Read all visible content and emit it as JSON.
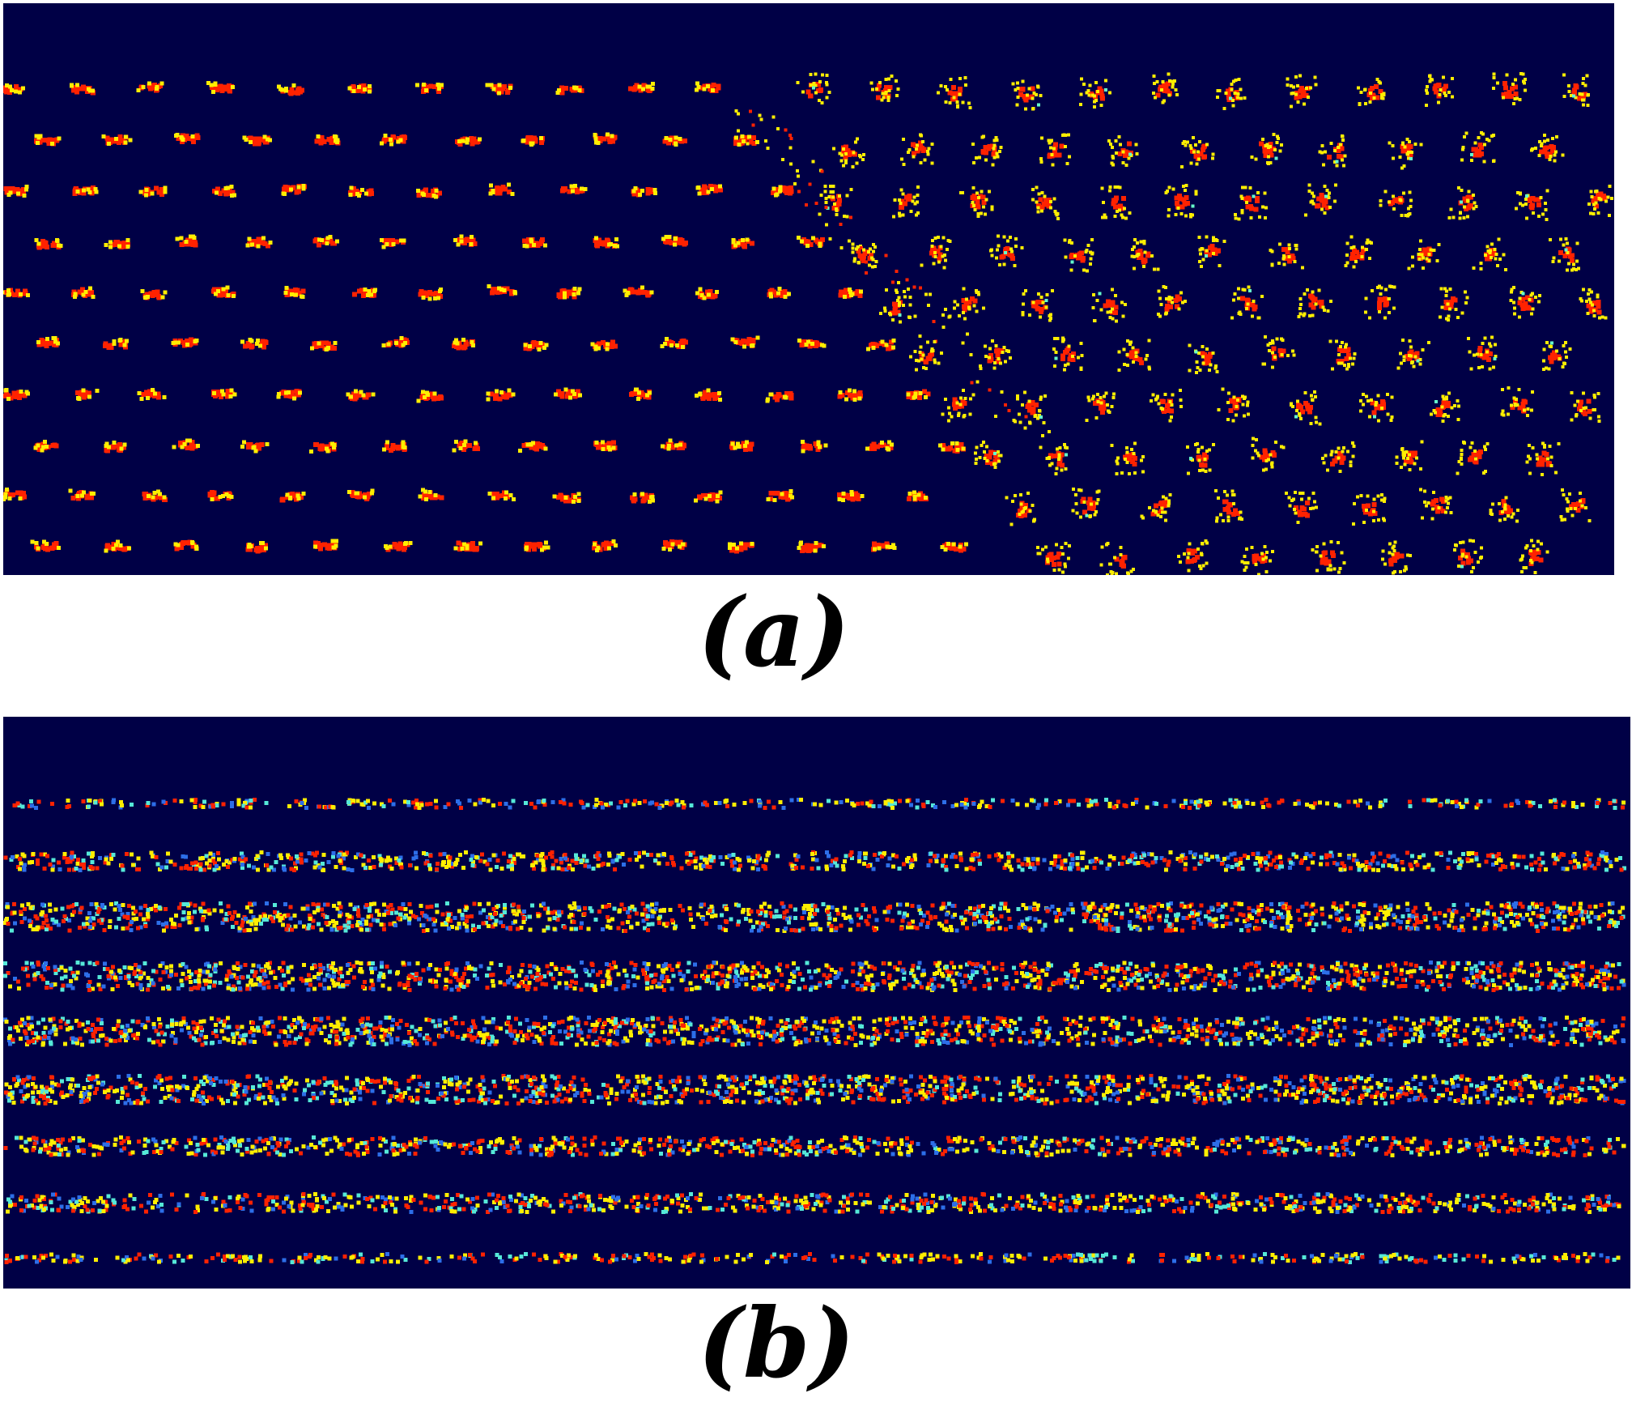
{
  "figure": {
    "panels": [
      {
        "id": "a",
        "label": "(a)",
        "content": "crystalline-lattice-with-grain-boundary",
        "background_color": "#000046",
        "colors": {
          "core": "#ff2200",
          "halo": "#ffee00",
          "sparse": "#66ffcc"
        }
      },
      {
        "id": "b",
        "label": "(b)",
        "content": "disordered-row-structure",
        "background_color": "#000046",
        "colors": {
          "red": "#ff2200",
          "yellow": "#ffee00",
          "cyan": "#55e8d8",
          "blue": "#2d6ee8"
        }
      }
    ]
  }
}
